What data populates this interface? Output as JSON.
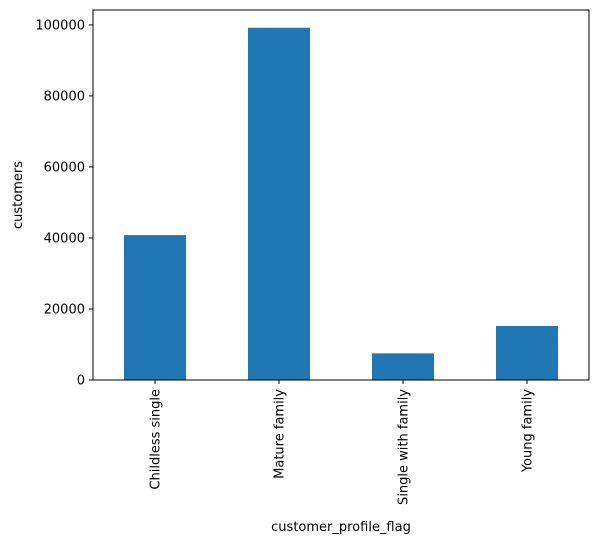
{
  "chart_data": {
    "type": "bar",
    "title": "",
    "xlabel": "customer_profile_flag",
    "ylabel": "customers",
    "categories": [
      "Childless single",
      "Mature family",
      "Single with family",
      "Young family"
    ],
    "values": [
      40800,
      99200,
      7500,
      15200
    ],
    "ylim": [
      0,
      104200
    ],
    "yticks": [
      0,
      20000,
      40000,
      60000,
      80000,
      100000
    ],
    "ytick_labels": [
      "0",
      "20000",
      "40000",
      "60000",
      "80000",
      "100000"
    ],
    "bar_color": "#1f77b4",
    "grid": false,
    "legend": "none"
  }
}
